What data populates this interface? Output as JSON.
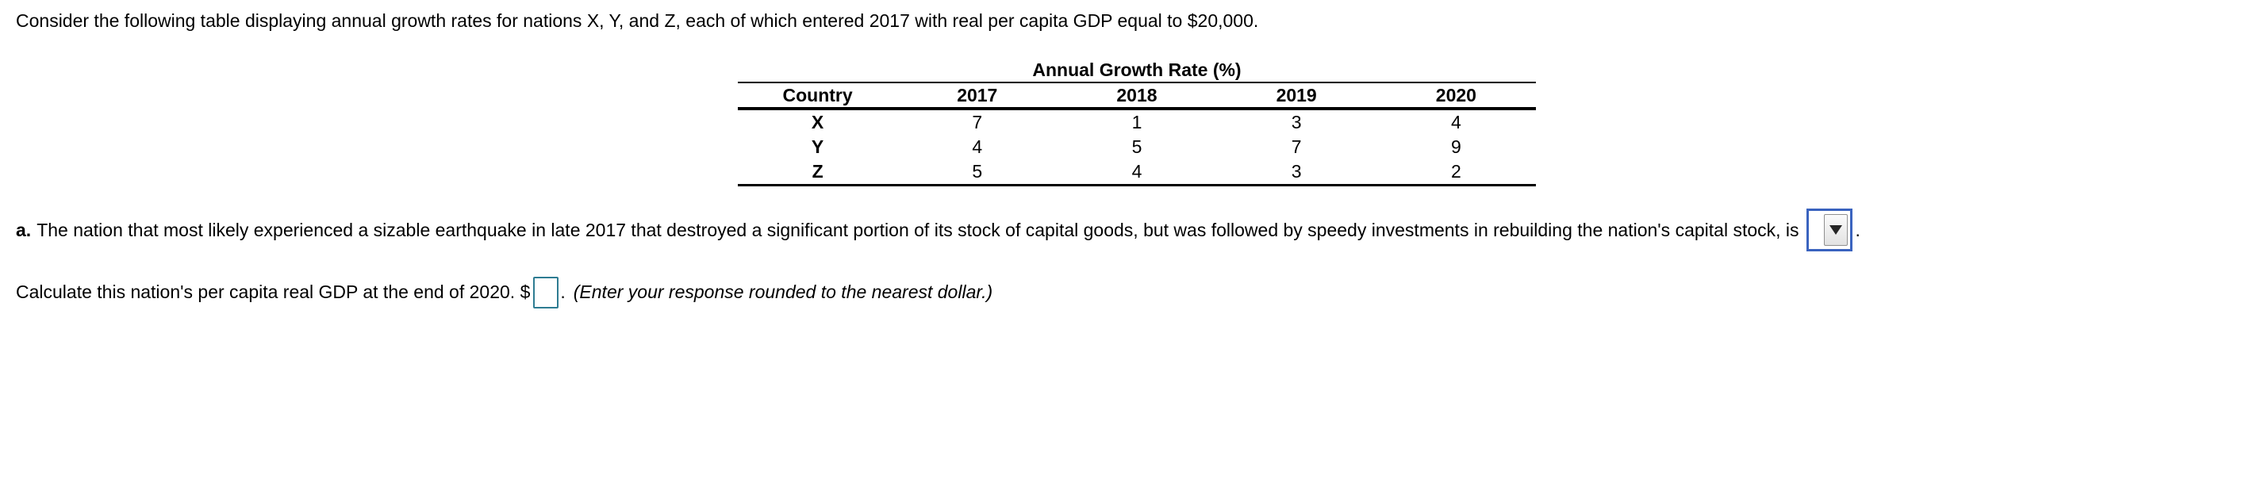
{
  "intro": "Consider the following table displaying annual growth rates for nations X, Y, and Z, each of which entered 2017 with real per capita GDP equal to $20,000.",
  "table": {
    "title": "Annual Growth Rate (%)",
    "columns": [
      "Country",
      "2017",
      "2018",
      "2019",
      "2020"
    ],
    "rows": [
      {
        "country": "X",
        "values": [
          "7",
          "1",
          "3",
          "4"
        ]
      },
      {
        "country": "Y",
        "values": [
          "4",
          "5",
          "7",
          "9"
        ]
      },
      {
        "country": "Z",
        "values": [
          "5",
          "4",
          "3",
          "2"
        ]
      }
    ]
  },
  "question_a": {
    "label": "a.",
    "text_before_dropdown": "The nation that most likely experienced a sizable earthquake in late 2017 that destroyed a significant portion of its stock of capital goods, but was followed by speedy investments in rebuilding the nation's capital stock, is",
    "dropdown_value": "",
    "text_after_dropdown": "."
  },
  "question_b": {
    "text_before_input": "Calculate this nation's per capita real GDP at the end of 2020. $",
    "input_value": "",
    "text_after_input": ".",
    "hint": "(Enter your response rounded to the nearest dollar.)"
  },
  "colors": {
    "page_background": "#ffffff",
    "text": "#000000",
    "dropdown_border": "#3a63bf",
    "input_border": "#2e7c92"
  }
}
